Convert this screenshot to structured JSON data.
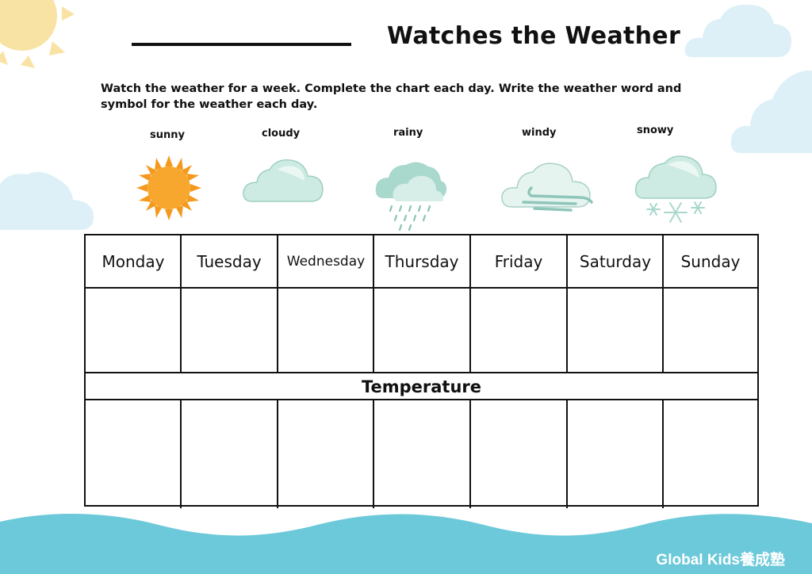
{
  "worksheet": {
    "title": "Watches the Weather",
    "instructions": "Watch the weather for a week. Complete the chart each day. Write the weather word and symbol for the weather each day."
  },
  "legend": [
    {
      "label": "sunny",
      "icon": "sun-icon"
    },
    {
      "label": "cloudy",
      "icon": "cloud-icon"
    },
    {
      "label": "rainy",
      "icon": "rain-cloud-icon"
    },
    {
      "label": "windy",
      "icon": "wind-cloud-icon"
    },
    {
      "label": "snowy",
      "icon": "snow-cloud-icon"
    }
  ],
  "chart": {
    "days": [
      "Monday",
      "Tuesday",
      "Wednesday",
      "Thursday",
      "Friday",
      "Saturday",
      "Sunday"
    ],
    "temperature_label": "Temperature"
  },
  "footer": {
    "brand": "Global Kids養成塾"
  },
  "colors": {
    "sun_orange": "#F7A126",
    "cloud_mint": "#CDEBE2",
    "sky_cloud": "#DDF0F7",
    "wave_blue": "#6CC9D9",
    "corner_sun": "#F9E3A4"
  }
}
